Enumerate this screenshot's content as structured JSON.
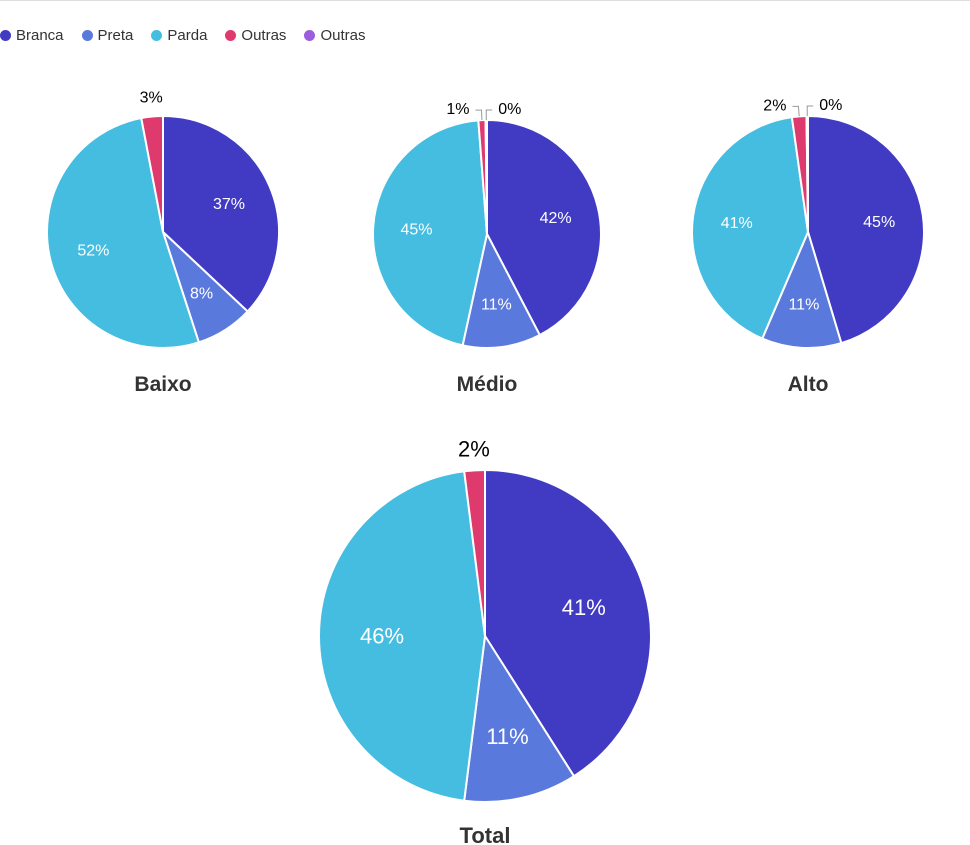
{
  "chart_data": [
    {
      "type": "pie",
      "title": "Baixo",
      "categories": [
        "Branca",
        "Preta",
        "Parda",
        "Outras",
        "Outras"
      ],
      "values": [
        37,
        8,
        52,
        3,
        0
      ],
      "labels": [
        "37%",
        "8%",
        "52%",
        "3%",
        ""
      ]
    },
    {
      "type": "pie",
      "title": "Médio",
      "categories": [
        "Branca",
        "Preta",
        "Parda",
        "Outras",
        "Outras"
      ],
      "values": [
        42,
        11,
        45,
        1,
        0.2
      ],
      "labels": [
        "42%",
        "11%",
        "45%",
        "1%",
        "0%"
      ]
    },
    {
      "type": "pie",
      "title": "Alto",
      "categories": [
        "Branca",
        "Preta",
        "Parda",
        "Outras",
        "Outras"
      ],
      "values": [
        45,
        11,
        41,
        2,
        0.2
      ],
      "labels": [
        "45%",
        "11%",
        "41%",
        "2%",
        "0%"
      ]
    },
    {
      "type": "pie",
      "title": "Total",
      "categories": [
        "Branca",
        "Preta",
        "Parda",
        "Outras",
        "Outras"
      ],
      "values": [
        41,
        11,
        46,
        2,
        0
      ],
      "labels": [
        "41%",
        "11%",
        "46%",
        "2%",
        ""
      ]
    }
  ],
  "legend": [
    {
      "label": "Branca",
      "color": "#413bc4"
    },
    {
      "label": "Preta",
      "color": "#5a79dc"
    },
    {
      "label": "Parda",
      "color": "#45bde0"
    },
    {
      "label": "Outras",
      "color": "#de3a6e"
    },
    {
      "label": "Outras",
      "color": "#9b5ce0"
    }
  ]
}
